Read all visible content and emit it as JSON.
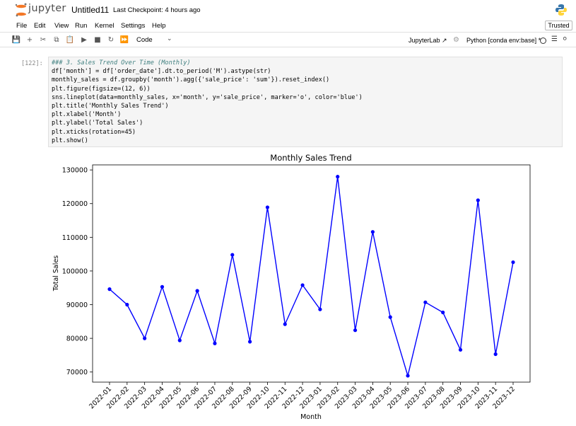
{
  "app": {
    "logo_text": "jupyter",
    "notebook_title": "Untitled11",
    "checkpoint": "Last Checkpoint: 4 hours ago",
    "trusted_label": "Trusted"
  },
  "menu": [
    "File",
    "Edit",
    "View",
    "Run",
    "Kernel",
    "Settings",
    "Help"
  ],
  "toolbar": {
    "cell_type": "Code",
    "jupyterlab_label": "JupyterLab",
    "kernel_label": "Python [conda env:base] *"
  },
  "cell": {
    "prompt": "[122]:",
    "lines": [
      "### 3. Sales Trend Over Time (Monthly)",
      "df['month'] = df['order_date'].dt.to_period('M').astype(str)",
      "monthly_sales = df.groupby('month').agg({'sale_price': 'sum'}).reset_index()",
      "plt.figure(figsize=(12, 6))",
      "sns.lineplot(data=monthly_sales, x='month', y='sale_price', marker='o', color='blue')",
      "plt.title('Monthly Sales Trend')",
      "plt.xlabel('Month')",
      "plt.ylabel('Total Sales')",
      "plt.xticks(rotation=45)",
      "plt.show()"
    ]
  },
  "chart_data": {
    "type": "line",
    "title": "Monthly Sales Trend",
    "xlabel": "Month",
    "ylabel": "Total Sales",
    "categories": [
      "2022-01",
      "2022-02",
      "2022-03",
      "2022-04",
      "2022-05",
      "2022-06",
      "2022-07",
      "2022-08",
      "2022-09",
      "2022-10",
      "2022-11",
      "2022-12",
      "2023-01",
      "2023-02",
      "2023-03",
      "2023-04",
      "2023-05",
      "2023-06",
      "2023-07",
      "2023-08",
      "2023-09",
      "2023-10",
      "2023-11",
      "2023-12"
    ],
    "values": [
      94600,
      90000,
      80000,
      95300,
      79400,
      94100,
      78500,
      104800,
      79000,
      118900,
      84200,
      95800,
      88600,
      128000,
      82400,
      111600,
      86300,
      68900,
      90700,
      87700,
      76600,
      121000,
      75300,
      102600
    ],
    "yticks": [
      70000,
      80000,
      90000,
      100000,
      110000,
      120000,
      130000
    ],
    "ylim": [
      67000,
      131500
    ],
    "color": "#0000ff",
    "marker": "o",
    "grid": false
  }
}
